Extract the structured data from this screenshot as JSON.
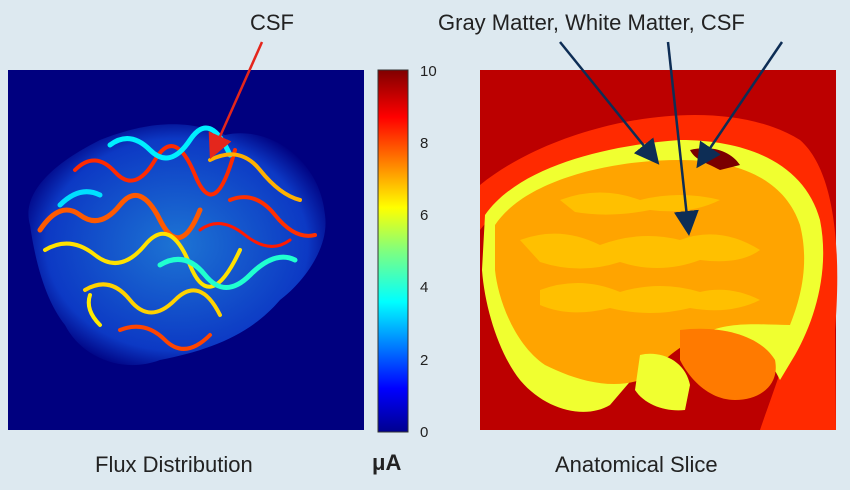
{
  "annotations": {
    "csf_label": "CSF",
    "anatomy_label": "Gray Matter, White Matter, CSF"
  },
  "captions": {
    "flux": "Flux Distribution",
    "anatomy": "Anatomical Slice"
  },
  "colorbar": {
    "unit": "μA",
    "ticks": [
      "10",
      "8",
      "6",
      "4",
      "2",
      "0"
    ],
    "range": [
      0,
      10
    ],
    "colormap": "jet"
  },
  "colors": {
    "background": "#dde9f0",
    "flux_background": "#00007f",
    "csf_arrow": "#e4261c",
    "anatomy_arrow": "#0d2d55"
  }
}
